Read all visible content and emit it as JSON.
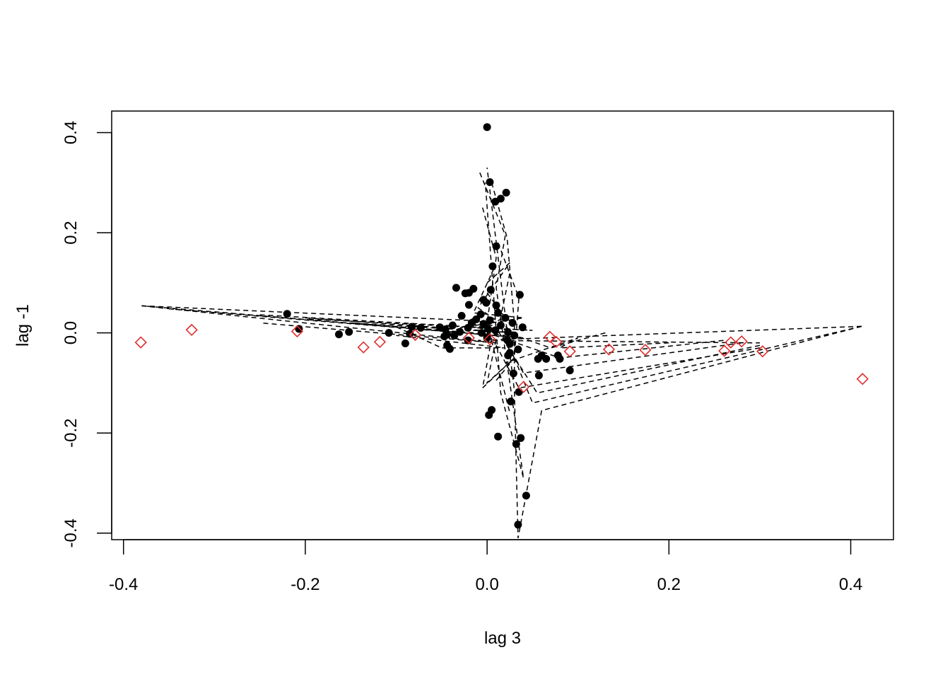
{
  "chart_data": {
    "type": "scatter",
    "title": "",
    "xlabel": "lag 3",
    "ylabel": "lag -1",
    "xlim": [
      -0.413,
      0.447
    ],
    "ylim": [
      -0.413,
      0.443
    ],
    "x_ticks": [
      {
        "value": -0.4,
        "label": "-0.4"
      },
      {
        "value": -0.2,
        "label": "-0.2"
      },
      {
        "value": 0.0,
        "label": "0.0"
      },
      {
        "value": 0.2,
        "label": "0.2"
      },
      {
        "value": 0.4,
        "label": "0.4"
      }
    ],
    "y_ticks": [
      {
        "value": -0.4,
        "label": "-0.4"
      },
      {
        "value": -0.2,
        "label": "-0.2"
      },
      {
        "value": 0.0,
        "label": "0.0"
      },
      {
        "value": 0.2,
        "label": "0.2"
      },
      {
        "value": 0.4,
        "label": "0.4"
      }
    ],
    "grid": false,
    "legend": "none",
    "colors": {
      "points": "#000000",
      "diamonds": "#df2d2d",
      "lines": "#000000",
      "frame": "#000000"
    },
    "series": [
      {
        "marker": "filled-circle",
        "points": [
          [
            0.0,
            0.411
          ],
          [
            0.003,
            0.301
          ],
          [
            0.021,
            0.28
          ],
          [
            0.015,
            0.268
          ],
          [
            0.009,
            0.262
          ],
          [
            0.01,
            0.173
          ],
          [
            0.006,
            0.133
          ],
          [
            0.004,
            0.086
          ],
          [
            -0.034,
            0.09
          ],
          [
            -0.015,
            0.088
          ],
          [
            -0.02,
            0.08
          ],
          [
            -0.024,
            0.079
          ],
          [
            0.036,
            0.076
          ],
          [
            -0.004,
            0.066
          ],
          [
            -0.001,
            0.06
          ],
          [
            -0.02,
            0.056
          ],
          [
            0.01,
            0.055
          ],
          [
            -0.028,
            0.034
          ],
          [
            -0.007,
            0.037
          ],
          [
            0.012,
            0.04
          ],
          [
            0.02,
            0.03
          ],
          [
            -0.012,
            0.027
          ],
          [
            0.003,
            0.025
          ],
          [
            -0.017,
            0.02
          ],
          [
            0.028,
            0.02
          ],
          [
            -0.004,
            0.018
          ],
          [
            0.015,
            0.015
          ],
          [
            -0.038,
            0.015
          ],
          [
            -0.22,
            0.038
          ],
          [
            -0.207,
            0.008
          ],
          [
            -0.083,
            0.012
          ],
          [
            -0.073,
            0.01
          ],
          [
            -0.052,
            0.011
          ],
          [
            -0.046,
            0.007
          ],
          [
            0.039,
            0.011
          ],
          [
            -0.021,
            0.01
          ],
          [
            0.001,
            0.008
          ],
          [
            0.009,
            0.005
          ],
          [
            -0.03,
            0.002
          ],
          [
            0.023,
            0.001
          ],
          [
            -0.006,
            0.0
          ],
          [
            -0.152,
            0.002
          ],
          [
            -0.108,
            0.0
          ],
          [
            -0.085,
            -0.002
          ],
          [
            -0.163,
            -0.003
          ],
          [
            -0.044,
            -0.003
          ],
          [
            -0.036,
            -0.005
          ],
          [
            0.03,
            -0.005
          ],
          [
            -0.047,
            -0.007
          ],
          [
            0.0,
            -0.01
          ],
          [
            0.022,
            -0.014
          ],
          [
            -0.09,
            -0.021
          ],
          [
            -0.044,
            -0.025
          ],
          [
            -0.041,
            -0.032
          ],
          [
            0.025,
            -0.022
          ],
          [
            0.034,
            -0.033
          ],
          [
            0.025,
            -0.04
          ],
          [
            -0.021,
            -0.015
          ],
          [
            0.023,
            -0.045
          ],
          [
            0.06,
            -0.045
          ],
          [
            0.056,
            -0.052
          ],
          [
            0.065,
            -0.052
          ],
          [
            0.078,
            -0.045
          ],
          [
            0.08,
            -0.052
          ],
          [
            0.091,
            -0.075
          ],
          [
            0.057,
            -0.085
          ],
          [
            0.029,
            -0.081
          ],
          [
            0.035,
            -0.118
          ],
          [
            0.026,
            -0.137
          ],
          [
            0.005,
            -0.154
          ],
          [
            0.002,
            -0.164
          ],
          [
            0.012,
            -0.207
          ],
          [
            0.037,
            -0.21
          ],
          [
            0.032,
            -0.222
          ],
          [
            0.043,
            -0.325
          ],
          [
            0.034,
            -0.383
          ]
        ]
      },
      {
        "marker": "open-diamond",
        "points": [
          [
            -0.381,
            -0.019
          ],
          [
            -0.325,
            0.006
          ],
          [
            -0.209,
            0.003
          ],
          [
            -0.136,
            -0.029
          ],
          [
            -0.118,
            -0.018
          ],
          [
            -0.079,
            -0.004
          ],
          [
            -0.02,
            -0.01
          ],
          [
            0.003,
            -0.013
          ],
          [
            0.069,
            -0.008
          ],
          [
            0.076,
            -0.018
          ],
          [
            0.04,
            -0.108
          ],
          [
            0.091,
            -0.037
          ],
          [
            0.134,
            -0.033
          ],
          [
            0.174,
            -0.034
          ],
          [
            0.261,
            -0.036
          ],
          [
            0.268,
            -0.019
          ],
          [
            0.28,
            -0.017
          ],
          [
            0.303,
            -0.037
          ],
          [
            0.413,
            -0.092
          ]
        ]
      },
      {
        "marker": "dashed-line",
        "paths": [
          [
            [
              -0.38,
              0.054
            ],
            [
              -0.021,
              0.025
            ],
            [
              0.01,
              -0.005
            ],
            [
              -0.38,
              0.054
            ]
          ],
          [
            [
              -0.35,
              0.048
            ],
            [
              0.04,
              -0.01
            ],
            [
              -0.3,
              0.042
            ]
          ],
          [
            [
              -0.25,
              0.036
            ],
            [
              0.05,
              0.005
            ],
            [
              -0.2,
              0.028
            ]
          ],
          [
            [
              -0.2,
              0.03
            ],
            [
              0.03,
              0.0
            ],
            [
              -0.15,
              0.02
            ],
            [
              0.02,
              -0.005
            ]
          ],
          [
            [
              -0.1,
              0.012
            ],
            [
              -0.05,
              -0.03
            ],
            [
              0.02,
              -0.03
            ],
            [
              -0.1,
              -0.005
            ]
          ],
          [
            [
              -0.38,
              0.054
            ],
            [
              0.01,
              -0.02
            ],
            [
              -0.25,
              0.02
            ]
          ],
          [
            [
              0.412,
              0.013
            ],
            [
              -0.01,
              -0.015
            ],
            [
              0.3,
              -0.02
            ]
          ],
          [
            [
              0.412,
              0.013
            ],
            [
              0.06,
              -0.155
            ],
            [
              0.034,
              -0.41
            ],
            [
              0.03,
              -0.115
            ],
            [
              0.0,
              0.33
            ]
          ],
          [
            [
              0.412,
              0.013
            ],
            [
              0.05,
              -0.14
            ],
            [
              0.03,
              -0.05
            ]
          ],
          [
            [
              0.3,
              -0.025
            ],
            [
              0.055,
              -0.12
            ],
            [
              0.02,
              -0.02
            ]
          ],
          [
            [
              0.28,
              -0.02
            ],
            [
              0.04,
              -0.08
            ],
            [
              0.01,
              0.01
            ]
          ],
          [
            [
              0.26,
              -0.015
            ],
            [
              0.08,
              -0.05
            ],
            [
              0.0,
              0.0
            ]
          ],
          [
            [
              0.3,
              -0.03
            ],
            [
              0.035,
              -0.11
            ],
            [
              0.01,
              -0.025
            ]
          ],
          [
            [
              0.2,
              -0.02
            ],
            [
              0.08,
              -0.03
            ],
            [
              0.1,
              -0.01
            ],
            [
              0.02,
              -0.06
            ]
          ],
          [
            [
              0.13,
              0.0
            ],
            [
              0.07,
              -0.03
            ],
            [
              0.03,
              -0.005
            ]
          ],
          [
            [
              -0.008,
              0.32
            ],
            [
              0.02,
              0.195
            ],
            [
              0.01,
              0.09
            ],
            [
              0.04,
              -0.29
            ],
            [
              0.015,
              -0.12
            ],
            [
              -0.002,
              0.3
            ]
          ],
          [
            [
              0.005,
              0.3
            ],
            [
              0.022,
              0.19
            ],
            [
              0.03,
              0.02
            ],
            [
              0.03,
              -0.08
            ]
          ],
          [
            [
              -0.005,
              0.25
            ],
            [
              0.01,
              0.15
            ],
            [
              0.0,
              0.02
            ],
            [
              0.025,
              -0.16
            ]
          ],
          [
            [
              0.012,
              0.18
            ],
            [
              0.035,
              0.07
            ],
            [
              0.03,
              -0.05
            ],
            [
              0.0,
              -0.1
            ],
            [
              0.025,
              0.12
            ]
          ],
          [
            [
              0.0,
              0.1
            ],
            [
              0.025,
              0.14
            ],
            [
              -0.01,
              0.05
            ],
            [
              0.03,
              0.0
            ],
            [
              -0.02,
              0.03
            ]
          ],
          [
            [
              0.008,
              0.13
            ],
            [
              -0.015,
              0.04
            ],
            [
              0.04,
              0.03
            ],
            [
              -0.03,
              0.01
            ]
          ],
          [
            [
              0.0,
              0.08
            ],
            [
              0.02,
              0.03
            ],
            [
              -0.01,
              0.01
            ],
            [
              0.025,
              0.0
            ]
          ],
          [
            [
              0.005,
              -0.01
            ],
            [
              -0.005,
              -0.11
            ],
            [
              0.03,
              -0.05
            ],
            [
              0.01,
              -0.095
            ]
          ]
        ]
      }
    ]
  }
}
